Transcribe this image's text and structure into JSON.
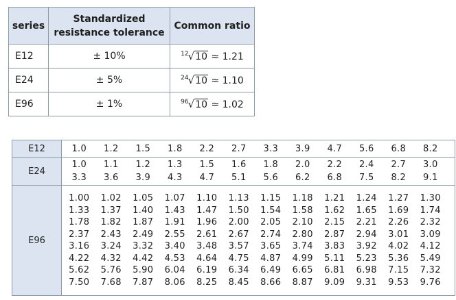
{
  "summary_table": {
    "headers": {
      "series": "series",
      "tolerance_line1": "Standardized",
      "tolerance_line2": "resistance tolerance",
      "ratio": "Common ratio"
    },
    "rows": [
      {
        "series": "E12",
        "tolerance": "± 10%",
        "ratio_index": "12",
        "ratio_radicand": "10",
        "ratio_value": "≈ 1.21"
      },
      {
        "series": "E24",
        "tolerance": "± 5%",
        "ratio_index": "24",
        "ratio_radicand": "10",
        "ratio_value": "≈ 1.10"
      },
      {
        "series": "E96",
        "tolerance": "± 1%",
        "ratio_index": "96",
        "ratio_radicand": "10",
        "ratio_value": "≈ 1.02"
      }
    ]
  },
  "values_table": {
    "e12": {
      "label": "E12",
      "rows": [
        [
          "1.0",
          "1.2",
          "1.5",
          "1.8",
          "2.2",
          "2.7",
          "3.3",
          "3.9",
          "4.7",
          "5.6",
          "6.8",
          "8.2"
        ]
      ]
    },
    "e24": {
      "label": "E24",
      "rows": [
        [
          "1.0",
          "1.1",
          "1.2",
          "1.3",
          "1.5",
          "1.6",
          "1.8",
          "2.0",
          "2.2",
          "2.4",
          "2.7",
          "3.0"
        ],
        [
          "3.3",
          "3.6",
          "3.9",
          "4.3",
          "4.7",
          "5.1",
          "5.6",
          "6.2",
          "6.8",
          "7.5",
          "8.2",
          "9.1"
        ]
      ]
    },
    "e96": {
      "label": "E96",
      "rows": [
        [
          "1.00",
          "1.02",
          "1.05",
          "1.07",
          "1.10",
          "1.13",
          "1.15",
          "1.18",
          "1.21",
          "1.24",
          "1.27",
          "1.30"
        ],
        [
          "1.33",
          "1.37",
          "1.40",
          "1.43",
          "1.47",
          "1.50",
          "1.54",
          "1.58",
          "1.62",
          "1.65",
          "1.69",
          "1.74"
        ],
        [
          "1.78",
          "1.82",
          "1.87",
          "1.91",
          "1.96",
          "2.00",
          "2.05",
          "2.10",
          "2.15",
          "2.21",
          "2.26",
          "2.32"
        ],
        [
          "2.37",
          "2.43",
          "2.49",
          "2.55",
          "2.61",
          "2.67",
          "2.74",
          "2.80",
          "2.87",
          "2.94",
          "3.01",
          "3.09"
        ],
        [
          "3.16",
          "3.24",
          "3.32",
          "3.40",
          "3.48",
          "3.57",
          "3.65",
          "3.74",
          "3.83",
          "3.92",
          "4.02",
          "4.12"
        ],
        [
          "4.22",
          "4.32",
          "4.42",
          "4.53",
          "4.64",
          "4.75",
          "4.87",
          "4.99",
          "5.11",
          "5.23",
          "5.36",
          "5.49"
        ],
        [
          "5.62",
          "5.76",
          "5.90",
          "6.04",
          "6.19",
          "6.34",
          "6.49",
          "6.65",
          "6.81",
          "6.98",
          "7.15",
          "7.32"
        ],
        [
          "7.50",
          "7.68",
          "7.87",
          "8.06",
          "8.25",
          "8.45",
          "8.66",
          "8.87",
          "9.09",
          "9.31",
          "9.53",
          "9.76"
        ]
      ]
    }
  }
}
